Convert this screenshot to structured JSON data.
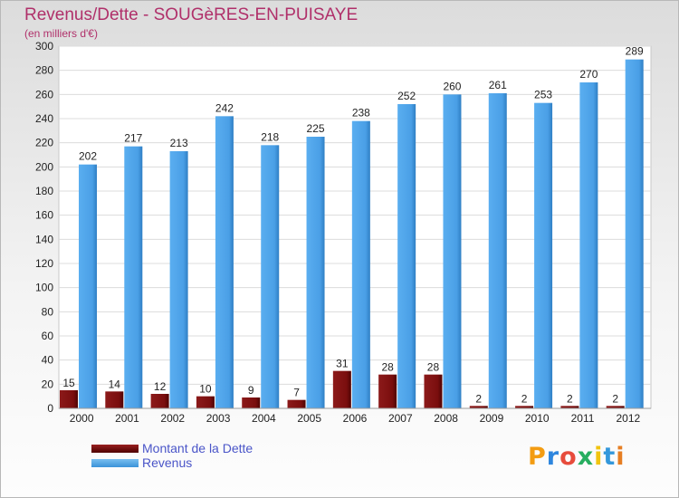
{
  "chart_data": {
    "type": "bar",
    "title": "Revenus/Dette - SOUGèRES-EN-PUISAYE",
    "subtitle": "(en milliers d'€)",
    "categories": [
      "2000",
      "2001",
      "2002",
      "2003",
      "2004",
      "2005",
      "2006",
      "2007",
      "2008",
      "2009",
      "2010",
      "2011",
      "2012"
    ],
    "series": [
      {
        "name": "Montant de la Dette",
        "values": [
          15,
          14,
          12,
          10,
          9,
          7,
          31,
          28,
          28,
          2,
          2,
          2,
          2
        ]
      },
      {
        "name": "Revenus",
        "values": [
          202,
          217,
          213,
          242,
          218,
          225,
          238,
          252,
          260,
          261,
          253,
          270,
          289
        ]
      }
    ],
    "ylim": [
      0,
      300
    ],
    "yticks": [
      0,
      20,
      40,
      60,
      80,
      100,
      120,
      140,
      160,
      180,
      200,
      220,
      240,
      260,
      280,
      300
    ],
    "grid": true,
    "legend_position": "bottom-left"
  },
  "colors": {
    "debt": "#7a0e0e",
    "revenue": "#4aa3e8",
    "title": "#b0306a"
  },
  "logo": {
    "text": "Proxiti",
    "letter_colors": [
      "#f39c12",
      "#2e86de",
      "#e74c3c",
      "#27ae60",
      "#f1c40f",
      "#3498db",
      "#e67e22"
    ]
  }
}
